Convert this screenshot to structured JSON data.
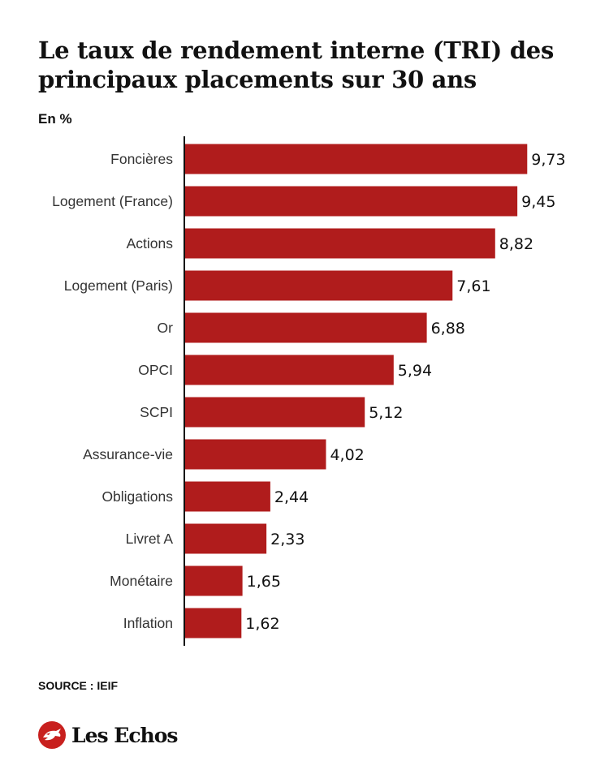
{
  "header": {
    "title": "Le taux de rendement interne (TRI) des principaux placements sur 30 ans",
    "unit": "En %"
  },
  "footer": {
    "source": "SOURCE : IEIF",
    "brand": "Les Echos"
  },
  "chart_data": {
    "type": "bar",
    "orientation": "horizontal",
    "title": "Le taux de rendement interne (TRI) des principaux placements sur 30 ans",
    "unit": "En %",
    "categories": [
      "Foncières",
      "Logement (France)",
      "Actions",
      "Logement (Paris)",
      "Or",
      "OPCI",
      "SCPI",
      "Assurance-vie",
      "Obligations",
      "Livret A",
      "Monétaire",
      "Inflation"
    ],
    "values": [
      9.73,
      9.45,
      8.82,
      7.61,
      6.88,
      5.94,
      5.12,
      4.02,
      2.44,
      2.33,
      1.65,
      1.62
    ],
    "value_labels": [
      "9,73",
      "9,45",
      "8,82",
      "7,61",
      "6,88",
      "5,94",
      "5,12",
      "4,02",
      "2,44",
      "2,33",
      "1,65",
      "1,62"
    ],
    "xlim": [
      0,
      10
    ],
    "grid": false,
    "legend": "none",
    "bar_color": "#b01c1c"
  },
  "colors": {
    "bar": "#b01c1c",
    "brand": "#c8201e",
    "text": "#111111"
  }
}
